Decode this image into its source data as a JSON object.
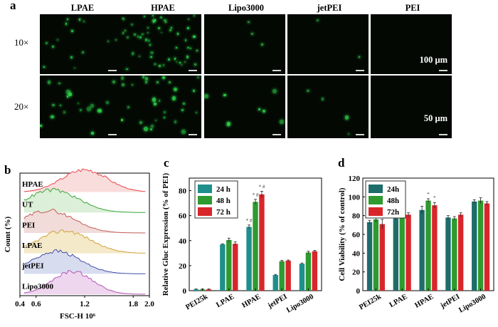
{
  "panel_a": {
    "label": "a",
    "columns": [
      "LPAE",
      "HPAE",
      "Lipo3000",
      "jetPEI",
      "PEI"
    ],
    "rows": [
      "10×",
      "20×"
    ],
    "scale_10x": "100 μm",
    "scale_20x": "50 μm",
    "marker_color": "#2bd24a"
  },
  "chart_data": [
    {
      "panel": "b",
      "type": "area",
      "ylabel": "Count (%)",
      "xlabel": "FSC-H 10⁶",
      "xticks": [
        "0.4",
        "0.6",
        "1.2",
        "1.8",
        "2.0"
      ],
      "xlim": [
        0.4,
        2.0
      ],
      "series": [
        {
          "name": "HPAE",
          "color": "#e8474b",
          "fill": "#f9dcdc",
          "peak": 1.2,
          "width": 0.28
        },
        {
          "name": "UT",
          "color": "#37a53a",
          "fill": "#dcefd8",
          "peak": 0.8,
          "width": 0.32
        },
        {
          "name": "PEI",
          "color": "#c05a57",
          "fill": "#f1dcda",
          "peak": 0.75,
          "width": 0.32
        },
        {
          "name": "LPAE",
          "color": "#d0a23a",
          "fill": "#f4e9c8",
          "peak": 0.95,
          "width": 0.32
        },
        {
          "name": "jetPEI",
          "color": "#3f4fa7",
          "fill": "#d8dcef",
          "peak": 0.85,
          "width": 0.3
        },
        {
          "name": "Lipo3000",
          "color": "#b454b4",
          "fill": "#efd6ef",
          "peak": 1.05,
          "width": 0.25
        }
      ]
    },
    {
      "panel": "c",
      "type": "bar",
      "ylabel": "Relative Gluc Expression (% of PEI)",
      "ylim": [
        0,
        90
      ],
      "yticks": [
        0,
        20,
        40,
        60,
        80
      ],
      "categories": [
        "PEI25k",
        "LPAE",
        "HPAE",
        "jetPEI",
        "Lipo3000"
      ],
      "series": [
        {
          "name": "24 h",
          "color": "#1f8f8c",
          "values": [
            1,
            37,
            51,
            12.5,
            21.5
          ],
          "errors": [
            0.4,
            0.5,
            1.5,
            0.5,
            0.6
          ]
        },
        {
          "name": "48 h",
          "color": "#2e9a2f",
          "values": [
            1,
            40.5,
            71,
            23.5,
            30.5
          ],
          "errors": [
            0.4,
            1.5,
            2,
            0.8,
            1
          ]
        },
        {
          "name": "72 h",
          "color": "#d8262b",
          "values": [
            1,
            37.5,
            77,
            24,
            31.5
          ],
          "errors": [
            0.4,
            1.5,
            2.5,
            0.5,
            0.7
          ]
        }
      ],
      "annotations": [
        "* #",
        "* #",
        "* #"
      ]
    },
    {
      "panel": "d",
      "type": "bar",
      "ylabel": "Cell Viability (% of control)",
      "ylim": [
        0,
        120
      ],
      "yticks": [
        0,
        20,
        40,
        60,
        80,
        100,
        120
      ],
      "categories": [
        "PEI25k",
        "LPAE",
        "HPAE",
        "jetPEI",
        "Lipo3000"
      ],
      "series": [
        {
          "name": "24h",
          "color": "#1d6d6b",
          "values": [
            73,
            77,
            86,
            78,
            95
          ],
          "errors": [
            2,
            1,
            4,
            2,
            2
          ]
        },
        {
          "name": "48h",
          "color": "#2e9a2f",
          "values": [
            76,
            81,
            96,
            77,
            96
          ],
          "errors": [
            3,
            2,
            2,
            2,
            3
          ]
        },
        {
          "name": "72h",
          "color": "#d8262b",
          "values": [
            71,
            81,
            91,
            81,
            93
          ],
          "errors": [
            5,
            2,
            3,
            2,
            2
          ]
        }
      ],
      "annotations": [
        "*",
        "*"
      ]
    }
  ]
}
